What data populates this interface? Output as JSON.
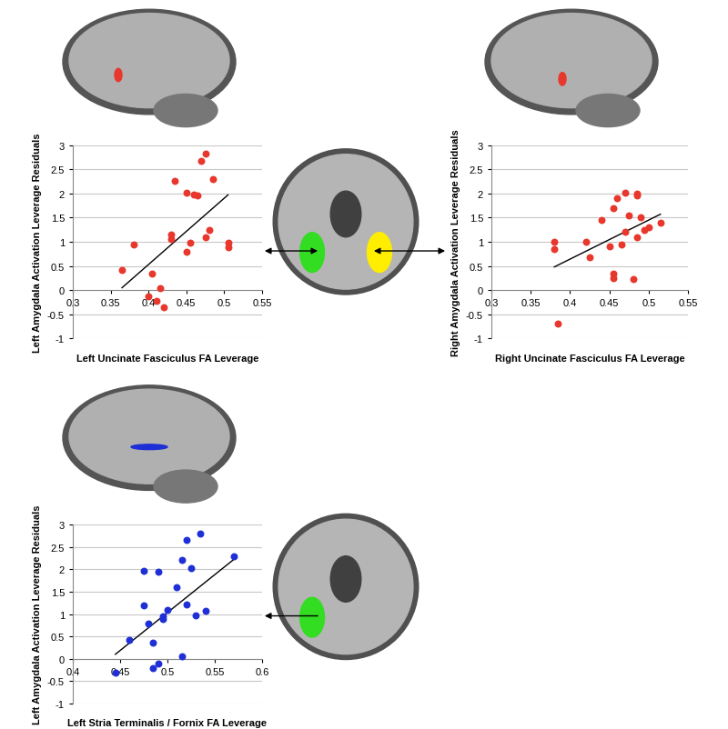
{
  "chart_data": [
    {
      "type": "scatter",
      "x_label": "Left Uncinate Fasciculus FA Leverage",
      "y_label": "Left Amygdala Activation Leverage Residuals",
      "xlim": [
        0.3,
        0.55
      ],
      "xticks": [
        0.3,
        0.35,
        0.4,
        0.45,
        0.5,
        0.55
      ],
      "ylim": [
        -1,
        3
      ],
      "yticks": [
        -1,
        -0.5,
        0,
        0.5,
        1,
        1.5,
        2,
        2.5,
        3
      ],
      "grid": true,
      "series": [
        {
          "type": "scatter",
          "color": "#e8372c",
          "marker": "o",
          "x": [
            0.365,
            0.38,
            0.4,
            0.405,
            0.41,
            0.415,
            0.42,
            0.43,
            0.43,
            0.435,
            0.45,
            0.45,
            0.455,
            0.46,
            0.465,
            0.47,
            0.475,
            0.475,
            0.48,
            0.485,
            0.505,
            0.505
          ],
          "values": [
            0.42,
            0.95,
            -0.12,
            0.35,
            -0.22,
            0.05,
            -0.35,
            1.05,
            1.15,
            2.25,
            2.02,
            0.8,
            0.98,
            1.98,
            1.95,
            2.68,
            2.82,
            1.1,
            1.25,
            2.3,
            0.98,
            0.88
          ]
        },
        {
          "type": "line",
          "color": "#000000",
          "line_style": "solid",
          "x": [
            0.365,
            0.505
          ],
          "values": [
            0.05,
            1.97
          ]
        }
      ]
    },
    {
      "type": "scatter",
      "x_label": "Right Uncinate Fasciculus FA Leverage",
      "y_label": "Right Amygdala Activation Leverage Residuals",
      "xlim": [
        0.3,
        0.55
      ],
      "xticks": [
        0.3,
        0.35,
        0.4,
        0.45,
        0.5,
        0.55
      ],
      "ylim": [
        -1,
        3
      ],
      "yticks": [
        -1,
        -0.5,
        0,
        0.5,
        1,
        1.5,
        2,
        2.5,
        3
      ],
      "grid": true,
      "series": [
        {
          "type": "scatter",
          "color": "#e8372c",
          "marker": "o",
          "x": [
            0.38,
            0.38,
            0.385,
            0.42,
            0.425,
            0.44,
            0.45,
            0.455,
            0.455,
            0.455,
            0.46,
            0.465,
            0.47,
            0.47,
            0.475,
            0.48,
            0.485,
            0.485,
            0.485,
            0.49,
            0.495,
            0.5,
            0.515
          ],
          "values": [
            1.0,
            0.85,
            -0.7,
            1.0,
            0.68,
            1.45,
            0.9,
            0.35,
            0.25,
            1.7,
            1.9,
            0.95,
            2.02,
            1.2,
            1.55,
            0.22,
            2.0,
            1.95,
            1.1,
            1.5,
            1.25,
            1.3,
            1.4
          ]
        },
        {
          "type": "line",
          "color": "#000000",
          "line_style": "solid",
          "x": [
            0.38,
            0.515
          ],
          "values": [
            0.48,
            1.57
          ]
        }
      ]
    },
    {
      "type": "scatter",
      "x_label": "Left Stria Terminalis / Fornix FA Leverage",
      "y_label": "Left Amygdala Activation Leverage Residuals",
      "xlim": [
        0.4,
        0.6
      ],
      "xticks": [
        0.4,
        0.45,
        0.5,
        0.55,
        0.6
      ],
      "ylim": [
        -1,
        3
      ],
      "yticks": [
        -1,
        -0.5,
        0,
        0.5,
        1,
        1.5,
        2,
        2.5,
        3
      ],
      "grid": true,
      "series": [
        {
          "type": "scatter",
          "color": "#1f2fd6",
          "marker": "o",
          "x": [
            0.445,
            0.46,
            0.475,
            0.475,
            0.48,
            0.485,
            0.485,
            0.49,
            0.49,
            0.495,
            0.495,
            0.5,
            0.51,
            0.515,
            0.515,
            0.52,
            0.52,
            0.525,
            0.53,
            0.535,
            0.54,
            0.57
          ],
          "values": [
            -0.32,
            0.42,
            1.2,
            1.97,
            0.78,
            0.35,
            -0.2,
            1.95,
            -0.1,
            0.88,
            0.95,
            1.1,
            1.6,
            2.22,
            0.05,
            1.22,
            2.65,
            2.02,
            0.98,
            2.8,
            1.08,
            2.3
          ]
        },
        {
          "type": "line",
          "color": "#000000",
          "line_style": "solid",
          "x": [
            0.445,
            0.57
          ],
          "values": [
            0.1,
            2.22
          ]
        }
      ]
    }
  ]
}
